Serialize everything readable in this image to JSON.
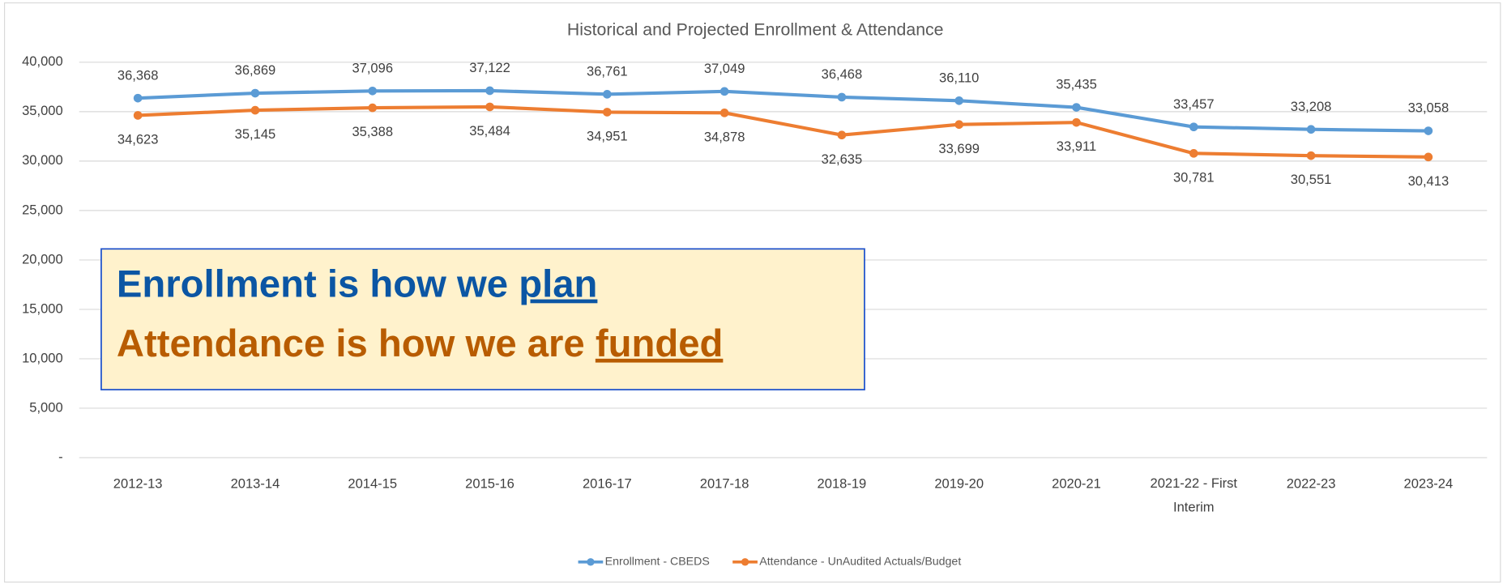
{
  "chart_data": {
    "type": "line",
    "title": "Historical and Projected Enrollment & Attendance",
    "categories": [
      "2012-13",
      "2013-14",
      "2014-15",
      "2015-16",
      "2016-17",
      "2017-18",
      "2018-19",
      "2019-20",
      "2020-21",
      "2021-22 - First Interim",
      "2022-23",
      "2023-24"
    ],
    "series": [
      {
        "name": "Enrollment - CBEDS",
        "color": "#5b9bd5",
        "values": [
          36368,
          36869,
          37096,
          37122,
          36761,
          37049,
          36468,
          36110,
          35435,
          33457,
          33208,
          33058
        ],
        "value_labels": [
          "36,368",
          "36,869",
          "37,096",
          "37,122",
          "36,761",
          "37,049",
          "36,468",
          "36,110",
          "35,435",
          "33,457",
          "33,208",
          "33,058"
        ]
      },
      {
        "name": "Attendance - UnAudited Actuals/Budget",
        "color": "#ed7d31",
        "values": [
          34623,
          35145,
          35388,
          35484,
          34951,
          34878,
          32635,
          33699,
          33911,
          30781,
          30551,
          30413
        ],
        "value_labels": [
          "34,623",
          "35,145",
          "35,388",
          "35,484",
          "34,951",
          "34,878",
          "32,635",
          "33,699",
          "33,911",
          "30,781",
          "30,551",
          "30,413"
        ]
      }
    ],
    "ylim": [
      0,
      40000
    ],
    "yticks": [
      {
        "value": 0,
        "label": "-"
      },
      {
        "value": 5000,
        "label": "5,000"
      },
      {
        "value": 10000,
        "label": "10,000"
      },
      {
        "value": 15000,
        "label": "15,000"
      },
      {
        "value": 20000,
        "label": "20,000"
      },
      {
        "value": 25000,
        "label": "25,000"
      },
      {
        "value": 30000,
        "label": "30,000"
      },
      {
        "value": 35000,
        "label": "35,000"
      },
      {
        "value": 40000,
        "label": "40,000"
      }
    ],
    "grid": true,
    "legend": "bottom",
    "annotations": [
      {
        "text": "Enrollment is how we ",
        "emphasis": "plan",
        "color": "#0b56a4"
      },
      {
        "text": "Attendance is how we are ",
        "emphasis": "funded",
        "color": "#b85c00"
      }
    ]
  }
}
